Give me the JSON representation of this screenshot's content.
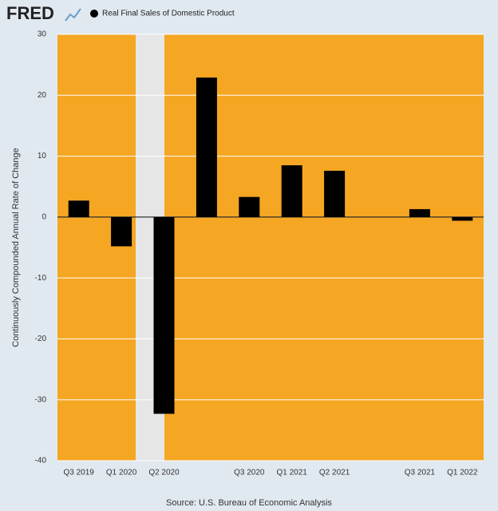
{
  "logo": "FRED",
  "chart_data": {
    "type": "bar",
    "series": [
      {
        "name": "Real Final Sales of Domestic Product",
        "color": "#000000",
        "values": [
          2.7,
          -4.8,
          -32.3,
          22.9,
          3.3,
          8.5,
          7.6,
          0,
          1.3,
          -0.6
        ]
      }
    ],
    "categories": [
      "Q3 2019",
      "Q1 2020",
      "Q2 2020",
      null,
      "Q3 2020",
      "Q1 2021",
      "Q2 2021",
      null,
      "Q3 2021",
      "Q1 2022"
    ],
    "ylabel": "Continuously Compounded Annual Rate of Change",
    "ylim": [
      -40,
      30
    ],
    "yticks": [
      30,
      20,
      10,
      0,
      -10,
      -20,
      -30,
      -40
    ],
    "grid": true,
    "source": "Source: U.S. Bureau of Economic Analysis"
  }
}
